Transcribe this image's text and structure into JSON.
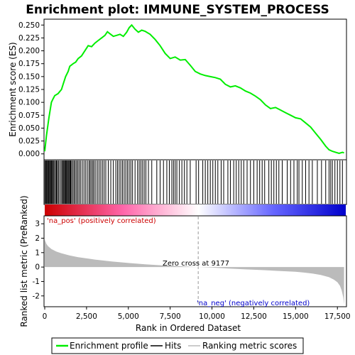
{
  "chart_data": {
    "type": "line",
    "title": "Enrichment plot: IMMUNE_SYSTEM_PROCESS",
    "xlabel": "Rank in Ordered Dataset",
    "xlim": [
      0,
      18000
    ],
    "x_ticks": [
      0,
      2500,
      5000,
      7500,
      10000,
      12500,
      15000,
      17500
    ],
    "x_tick_labels": [
      "0",
      "2,500",
      "5,000",
      "7,500",
      "10,000",
      "12,500",
      "15,000",
      "17,500"
    ],
    "es_panel": {
      "ylabel": "Enrichment score (ES)",
      "ylim": [
        -0.01,
        0.26
      ],
      "y_ticks": [
        0.0,
        0.025,
        0.05,
        0.075,
        0.1,
        0.125,
        0.15,
        0.175,
        0.2,
        0.225,
        0.25
      ],
      "y_tick_labels": [
        "0.000",
        "0.025",
        "0.050",
        "0.075",
        "0.100",
        "0.125",
        "0.150",
        "0.175",
        "0.200",
        "0.225",
        "0.250"
      ],
      "series": [
        {
          "name": "Enrichment profile",
          "color": "#00ee00",
          "x": [
            0,
            100,
            250,
            400,
            500,
            600,
            800,
            1000,
            1100,
            1250,
            1400,
            1500,
            1700,
            1850,
            2000,
            2200,
            2400,
            2600,
            2800,
            3000,
            3200,
            3400,
            3600,
            3750,
            3900,
            4100,
            4300,
            4500,
            4700,
            4900,
            5050,
            5200,
            5400,
            5600,
            5800,
            6000,
            6300,
            6600,
            6900,
            7200,
            7500,
            7800,
            8100,
            8400,
            8700,
            9000,
            9300,
            9600,
            9900,
            10200,
            10500,
            10800,
            11100,
            11400,
            11700,
            12000,
            12300,
            12600,
            12900,
            13200,
            13500,
            13800,
            14100,
            14400,
            14700,
            15000,
            15300,
            15600,
            15900,
            16200,
            16500,
            16800,
            17000,
            17200,
            17400,
            17600,
            17800,
            17900
          ],
          "y": [
            0.005,
            0.035,
            0.07,
            0.1,
            0.107,
            0.113,
            0.117,
            0.125,
            0.135,
            0.15,
            0.16,
            0.17,
            0.175,
            0.178,
            0.185,
            0.19,
            0.2,
            0.21,
            0.208,
            0.215,
            0.22,
            0.225,
            0.23,
            0.237,
            0.233,
            0.228,
            0.23,
            0.232,
            0.228,
            0.236,
            0.245,
            0.25,
            0.242,
            0.236,
            0.24,
            0.238,
            0.232,
            0.222,
            0.21,
            0.195,
            0.185,
            0.188,
            0.182,
            0.183,
            0.172,
            0.16,
            0.155,
            0.152,
            0.15,
            0.148,
            0.145,
            0.135,
            0.13,
            0.132,
            0.128,
            0.122,
            0.118,
            0.112,
            0.105,
            0.095,
            0.088,
            0.09,
            0.085,
            0.08,
            0.075,
            0.07,
            0.068,
            0.06,
            0.052,
            0.04,
            0.028,
            0.015,
            0.008,
            0.005,
            0.003,
            0.001,
            0.003,
            0.002
          ]
        }
      ]
    },
    "hits_panel": {
      "legend_label": "Hits",
      "color": "#000000",
      "hit_ranks": [
        10,
        60,
        110,
        160,
        200,
        240,
        290,
        330,
        380,
        420,
        470,
        520,
        580,
        650,
        700,
        760,
        820,
        900,
        980,
        1050,
        1100,
        1150,
        1200,
        1250,
        1300,
        1350,
        1400,
        1450,
        1500,
        1550,
        1600,
        1680,
        1750,
        1820,
        1900,
        1980,
        2060,
        2150,
        2250,
        2350,
        2450,
        2550,
        2650,
        2720,
        2800,
        2880,
        2950,
        3050,
        3150,
        3250,
        3350,
        3450,
        3550,
        3650,
        3800,
        3950,
        4100,
        4250,
        4350,
        4450,
        4550,
        4650,
        4750,
        4850,
        4950,
        5050,
        5150,
        5250,
        5400,
        5550,
        5650,
        5750,
        5850,
        5950,
        6050,
        6200,
        6400,
        6700,
        6900,
        7100,
        7300,
        7450,
        7600,
        7700,
        7800,
        7900,
        8050,
        8200,
        8350,
        8500,
        8700,
        9050,
        9200,
        9450,
        9600,
        9750,
        9900,
        10050,
        10200,
        10350,
        10550,
        10700,
        10950,
        11100,
        11300,
        11450,
        11600,
        11750,
        11900,
        12100,
        12300,
        12500,
        12700,
        12850,
        13000,
        13150,
        13400,
        13550,
        13700,
        13850,
        14000,
        14200,
        14500,
        14700,
        14900,
        15100,
        15200,
        15400,
        15600,
        15800,
        16000,
        16300,
        16550,
        16800,
        17000,
        17100,
        17200,
        17350,
        17500,
        17650,
        17800
      ]
    },
    "rank_gradient": {
      "colors": [
        "#cc0000",
        "#ff66aa",
        "#ffffff",
        "#6666ff",
        "#0000cc"
      ]
    },
    "metric_panel": {
      "ylabel": "Ranked list metric (PreRanked)",
      "ylim": [
        -2.7,
        3.5
      ],
      "y_ticks": [
        -2,
        -1,
        0,
        1,
        2,
        3
      ],
      "y_tick_labels": [
        "-2",
        "-1",
        "0",
        "1",
        "2",
        "3"
      ],
      "legend_label": "Ranking metric scores",
      "fill_color": "#bbbbbb",
      "x": [
        0,
        100,
        200,
        400,
        700,
        1000,
        1500,
        2000,
        3000,
        4000,
        5000,
        6000,
        7000,
        8000,
        9177,
        10000,
        11000,
        12000,
        13000,
        14000,
        15000,
        15500,
        16000,
        16500,
        17000,
        17300,
        17500,
        17650,
        17750,
        17850,
        17900
      ],
      "y": [
        1.9,
        1.6,
        1.45,
        1.25,
        1.07,
        0.95,
        0.8,
        0.68,
        0.52,
        0.39,
        0.28,
        0.19,
        0.12,
        0.06,
        0.0,
        -0.04,
        -0.1,
        -0.16,
        -0.21,
        -0.27,
        -0.33,
        -0.38,
        -0.45,
        -0.55,
        -0.7,
        -0.88,
        -1.05,
        -1.3,
        -1.6,
        -2.1,
        -2.6
      ]
    },
    "annotations": {
      "pos_label": "'na_pos' (positively correlated)",
      "neg_label": "'na_neg' (negatively correlated)",
      "zero_cross_label": "Zero cross at 9177",
      "zero_cross_rank": 9177
    },
    "legend": {
      "placement": "bottom",
      "items": [
        "Enrichment profile",
        "Hits",
        "Ranking metric scores"
      ]
    }
  }
}
